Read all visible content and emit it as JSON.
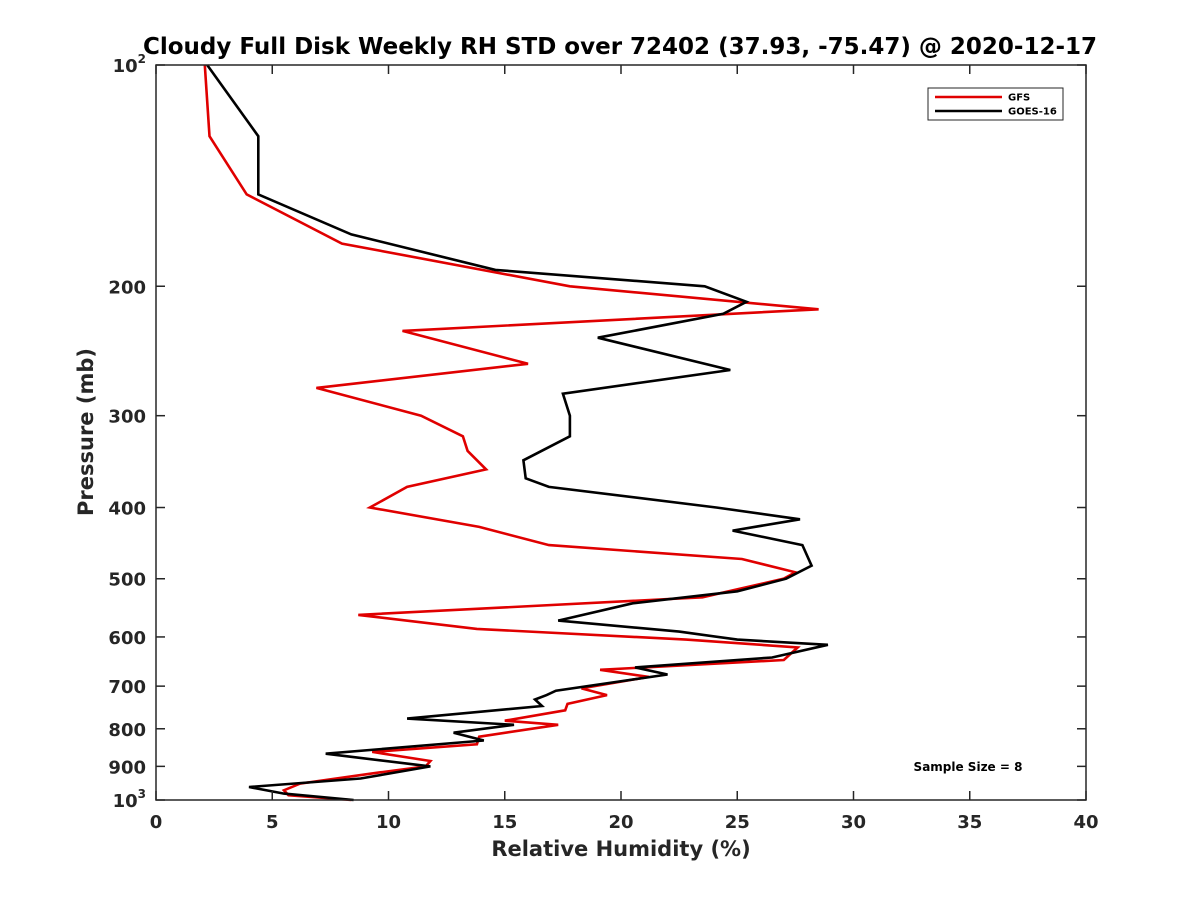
{
  "chart_data": {
    "type": "line",
    "title": "Cloudy Full Disk Weekly RH STD over 72402 (37.93, -75.47) @ 2020-12-17",
    "xlabel": "Relative Humidity (%)",
    "ylabel": "Pressure (mb)",
    "xlim": [
      0,
      40
    ],
    "ylim": [
      100,
      1000
    ],
    "yscale": "log",
    "y_reversed": true,
    "x_ticks": [
      "0",
      "5",
      "10",
      "15",
      "20",
      "25",
      "30",
      "35",
      "40"
    ],
    "y_ticks": [
      {
        "value": 100,
        "base": "10",
        "exp": "2"
      },
      {
        "value": 200,
        "base": "200",
        "exp": ""
      },
      {
        "value": 300,
        "base": "300",
        "exp": ""
      },
      {
        "value": 400,
        "base": "400",
        "exp": ""
      },
      {
        "value": 500,
        "base": "500",
        "exp": ""
      },
      {
        "value": 600,
        "base": "600",
        "exp": ""
      },
      {
        "value": 700,
        "base": "700",
        "exp": ""
      },
      {
        "value": 800,
        "base": "800",
        "exp": ""
      },
      {
        "value": 900,
        "base": "900",
        "exp": ""
      },
      {
        "value": 1000,
        "base": "10",
        "exp": "3"
      }
    ],
    "grid": false,
    "legend_position": "top-right",
    "annotation": "Sample Size = 8",
    "series": [
      {
        "name": "GFS",
        "color": "#e00000",
        "points": [
          [
            2.1,
            100
          ],
          [
            2.3,
            125
          ],
          [
            3.9,
            150
          ],
          [
            8.0,
            175
          ],
          [
            17.8,
            200
          ],
          [
            28.5,
            215
          ],
          [
            10.6,
            230
          ],
          [
            16.0,
            255
          ],
          [
            6.9,
            275
          ],
          [
            11.4,
            300
          ],
          [
            13.2,
            320
          ],
          [
            13.4,
            335
          ],
          [
            14.2,
            355
          ],
          [
            10.8,
            375
          ],
          [
            9.2,
            400
          ],
          [
            13.9,
            425
          ],
          [
            16.9,
            450
          ],
          [
            25.2,
            470
          ],
          [
            27.5,
            490
          ],
          [
            27.0,
            500
          ],
          [
            23.5,
            530
          ],
          [
            8.7,
            560
          ],
          [
            13.8,
            585
          ],
          [
            22.8,
            605
          ],
          [
            27.6,
            620
          ],
          [
            27.0,
            645
          ],
          [
            19.1,
            665
          ],
          [
            21.2,
            680
          ],
          [
            18.3,
            705
          ],
          [
            19.4,
            720
          ],
          [
            17.7,
            740
          ],
          [
            17.6,
            755
          ],
          [
            15.0,
            780
          ],
          [
            17.3,
            790
          ],
          [
            13.9,
            820
          ],
          [
            13.8,
            840
          ],
          [
            9.3,
            860
          ],
          [
            11.8,
            885
          ],
          [
            11.6,
            900
          ],
          [
            9.3,
            920
          ],
          [
            6.2,
            950
          ],
          [
            5.5,
            970
          ],
          [
            5.7,
            985
          ],
          [
            8.4,
            1000
          ]
        ]
      },
      {
        "name": "GOES-16",
        "color": "#000000",
        "points": [
          [
            2.2,
            100
          ],
          [
            4.4,
            125
          ],
          [
            4.4,
            150
          ],
          [
            8.4,
            170
          ],
          [
            14.6,
            190
          ],
          [
            23.6,
            200
          ],
          [
            25.4,
            210
          ],
          [
            24.4,
            218
          ],
          [
            19.0,
            235
          ],
          [
            24.7,
            260
          ],
          [
            17.5,
            280
          ],
          [
            17.8,
            300
          ],
          [
            17.8,
            320
          ],
          [
            15.8,
            345
          ],
          [
            15.9,
            365
          ],
          [
            16.9,
            375
          ],
          [
            24.1,
            400
          ],
          [
            27.7,
            415
          ],
          [
            24.8,
            430
          ],
          [
            27.8,
            450
          ],
          [
            28.2,
            480
          ],
          [
            27.1,
            500
          ],
          [
            25.0,
            520
          ],
          [
            20.5,
            540
          ],
          [
            17.3,
            570
          ],
          [
            22.5,
            590
          ],
          [
            25.0,
            605
          ],
          [
            28.9,
            615
          ],
          [
            26.5,
            640
          ],
          [
            20.6,
            660
          ],
          [
            22.0,
            675
          ],
          [
            17.2,
            710
          ],
          [
            16.8,
            720
          ],
          [
            16.3,
            730
          ],
          [
            16.6,
            745
          ],
          [
            10.8,
            775
          ],
          [
            15.4,
            790
          ],
          [
            12.8,
            810
          ],
          [
            14.1,
            830
          ],
          [
            7.3,
            865
          ],
          [
            11.8,
            900
          ],
          [
            8.8,
            935
          ],
          [
            4.0,
            960
          ],
          [
            5.5,
            980
          ],
          [
            8.5,
            1000
          ]
        ]
      }
    ]
  }
}
